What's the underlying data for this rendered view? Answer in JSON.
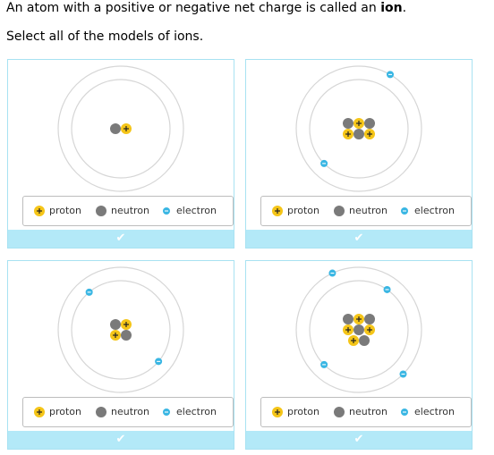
{
  "prompt": {
    "sentence_before": "An atom with a positive or negative net charge is called an ",
    "keyword": "ion",
    "sentence_after": ".",
    "instruction": "Select all of the models of ions."
  },
  "legend": {
    "proton_label": "proton",
    "neutron_label": "neutron",
    "electron_label": "electron"
  },
  "check_symbol": "✔",
  "colors": {
    "proton": "#f5c518",
    "neutron": "#7a7a7a",
    "electron": "#39b6e3",
    "orbit": "#d6d6d6",
    "card_border": "#a8e2f2",
    "check_bar": "#b3e9f8"
  },
  "models": [
    {
      "protons": 1,
      "neutrons": 1,
      "electrons": 0
    },
    {
      "protons": 3,
      "neutrons": 3,
      "electrons": 2
    },
    {
      "protons": 2,
      "neutrons": 2,
      "electrons": 2
    },
    {
      "protons": 4,
      "neutrons": 4,
      "electrons": 4
    }
  ]
}
